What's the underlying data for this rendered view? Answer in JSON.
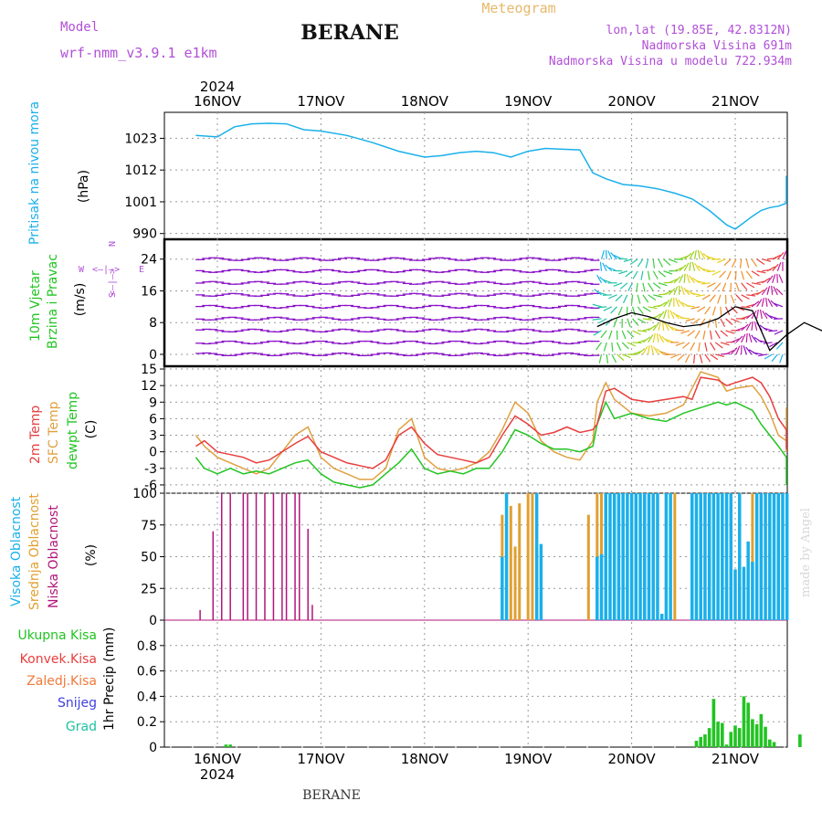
{
  "header": {
    "model_label": "Model",
    "model_name": "wrf-nmm_v3.9.1 e1km",
    "station": "BERANE",
    "meteogram_label": "Meteogram",
    "coords": "lon,lat (19.85E, 42.8312N)",
    "elevation": "Nadmorska Visina 691m",
    "model_elevation": "Nadmorska Visina u modelu 722.934m",
    "footer_station": "BERANE",
    "made_by": "made by Angel"
  },
  "time_axis": {
    "year": "2024",
    "day_labels": [
      "16NOV",
      "17NOV",
      "18NOV",
      "19NOV",
      "20NOV",
      "21NOV"
    ],
    "start_hour": 0,
    "end_hour": 144
  },
  "colors": {
    "pressure": "#1ab0ea",
    "wind_arrows": "#8a12c8",
    "speed_line": "#000000",
    "temp2m": "#e83e3e",
    "sfc_temp": "#e0a040",
    "dewpoint": "#22c422",
    "high_cloud": "#1ab0ea",
    "mid_cloud": "#e0a030",
    "low_cloud": "#b0157a",
    "precip_total": "#22c422",
    "grid": "#999999",
    "year_label": "#000000"
  },
  "panels": {
    "pressure": {
      "label_line1": "Pritisak na nivou mora",
      "unit": "(hPa)",
      "ticks": [
        "1023",
        "1012",
        "1001",
        "990"
      ]
    },
    "wind": {
      "label_line1": "10m Vjetar",
      "label_line2": "Brzina i Pravac",
      "unit": "(m/s)",
      "ticks": [
        "24",
        "16",
        "8",
        "0"
      ],
      "compass_n": "N",
      "compass_s": "S",
      "compass_e": "E",
      "compass_w": "W",
      "compass_axis_h": "<–|–>",
      "compass_axis_v": "<–|–>"
    },
    "temperature": {
      "label_2m": "2m Temp",
      "label_sfc": "SFC Temp",
      "label_dew": "dewpt Temp",
      "unit": "(C)",
      "ticks": [
        "15",
        "12",
        "9",
        "6",
        "3",
        "0",
        "-3",
        "-6"
      ]
    },
    "clouds": {
      "label_high": "Visoka Oblacnost",
      "label_mid": "Srednja Oblacnost",
      "label_low": "Niska Oblacnost",
      "unit": "(%)",
      "ticks": [
        "100",
        "75",
        "50",
        "25",
        "0"
      ]
    },
    "precip": {
      "label_total": "Ukupna Kisa",
      "label_conv": "Konvek.Kisa",
      "label_frozen": "Zaledj.Kisa",
      "label_snow": "Snijeg",
      "label_graupel": "Grad",
      "unit": "1hr Precip (mm)",
      "ticks": [
        "0.8",
        "0.6",
        "0.4",
        "0.2",
        "0"
      ]
    }
  },
  "chart_data": [
    {
      "type": "line",
      "name": "pressure",
      "x_units": "hours from 16NOV 00",
      "ylim": [
        988,
        1032
      ],
      "x": [
        -5,
        0,
        4,
        8,
        12,
        16,
        20,
        24,
        30,
        36,
        42,
        48,
        52,
        56,
        60,
        64,
        68,
        72,
        76,
        80,
        84,
        87,
        90,
        94,
        98,
        102,
        106,
        110,
        114,
        118,
        120,
        124,
        126,
        128,
        130,
        132,
        134,
        136,
        138,
        140,
        142,
        144
      ],
      "values": [
        1024,
        1023.5,
        1027,
        1028,
        1028.2,
        1028,
        1026,
        1025.5,
        1024,
        1021.5,
        1018.5,
        1016.5,
        1017,
        1018,
        1018.5,
        1018,
        1016.5,
        1018.5,
        1019.5,
        1019.2,
        1019,
        1011,
        1009,
        1007,
        1006.5,
        1005.5,
        1004,
        1002,
        998,
        993,
        991.5,
        996,
        998,
        999,
        999.5,
        1000.5,
        1001,
        1004,
        1007,
        1008.5,
        1009.5,
        1010
      ]
    },
    {
      "type": "line",
      "name": "10m wind speed",
      "ylim": [
        -3,
        29
      ],
      "x": [
        88,
        92,
        96,
        100,
        104,
        108,
        112,
        116,
        120,
        124,
        128,
        132,
        136,
        140,
        144
      ],
      "values": [
        7,
        9,
        10.5,
        9.5,
        8,
        7,
        7.5,
        9,
        12,
        11,
        1,
        5,
        8,
        6,
        4
      ]
    },
    {
      "type": "line",
      "name": "2m Temp",
      "ylim": [
        -7.5,
        15.5
      ],
      "x": [
        -5,
        -3,
        0,
        3,
        6,
        9,
        12,
        15,
        18,
        21,
        24,
        27,
        30,
        33,
        36,
        39,
        42,
        45,
        48,
        51,
        54,
        57,
        60,
        63,
        66,
        69,
        72,
        75,
        78,
        81,
        84,
        87,
        88,
        90,
        92,
        96,
        100,
        104,
        108,
        110,
        112,
        116,
        118,
        120,
        124,
        126,
        128,
        130,
        132,
        134,
        136,
        138,
        140,
        142,
        144
      ],
      "values": [
        1,
        2,
        0,
        -0.5,
        -1,
        -2,
        -1.5,
        0,
        1.5,
        2.8,
        0,
        -1,
        -2,
        -2.5,
        -3,
        -1.5,
        3,
        4.5,
        1.5,
        -0.5,
        -1,
        -1.5,
        -2,
        -1,
        3,
        6.5,
        5,
        3,
        3.5,
        4.5,
        3.5,
        4,
        5,
        11,
        11.5,
        9.5,
        9,
        9.5,
        10,
        9.5,
        13.5,
        13,
        12,
        12.5,
        13.5,
        12.5,
        10,
        6,
        4,
        2,
        1.5,
        0.5,
        1,
        3,
        3.5
      ]
    },
    {
      "type": "line",
      "name": "SFC Temp",
      "ylim": [
        -7.5,
        15.5
      ],
      "x": [
        -5,
        -3,
        0,
        3,
        6,
        9,
        12,
        15,
        18,
        21,
        24,
        27,
        30,
        33,
        36,
        39,
        42,
        45,
        48,
        51,
        54,
        57,
        60,
        63,
        66,
        69,
        72,
        75,
        78,
        81,
        84,
        87,
        88,
        90,
        92,
        96,
        100,
        104,
        108,
        110,
        112,
        116,
        118,
        120,
        124,
        126,
        128,
        130,
        132,
        134,
        136,
        138,
        140,
        142,
        144
      ],
      "values": [
        3,
        1,
        -1,
        -2,
        -3,
        -4,
        -3,
        0,
        3,
        4.5,
        -1,
        -3,
        -4,
        -5,
        -5,
        -3,
        4,
        6,
        -1,
        -3,
        -3.5,
        -3,
        -2,
        0,
        4,
        9,
        7,
        2,
        0,
        -1,
        -1.5,
        2,
        9,
        12.5,
        9.5,
        7,
        6.5,
        7,
        8.5,
        11.5,
        14.5,
        13.5,
        11,
        11.5,
        12,
        10,
        7,
        3,
        2,
        1,
        0,
        0.5,
        4,
        7,
        8
      ]
    },
    {
      "type": "line",
      "name": "dewpt Temp",
      "ylim": [
        -7.5,
        15.5
      ],
      "x": [
        -5,
        -3,
        0,
        3,
        6,
        9,
        12,
        15,
        18,
        21,
        24,
        27,
        30,
        33,
        36,
        39,
        42,
        45,
        48,
        51,
        54,
        57,
        60,
        63,
        66,
        69,
        72,
        75,
        78,
        81,
        84,
        87,
        88,
        90,
        92,
        96,
        100,
        104,
        108,
        110,
        112,
        116,
        118,
        120,
        124,
        126,
        128,
        130,
        132,
        134,
        136,
        138,
        140,
        142,
        144
      ],
      "values": [
        -1,
        -3,
        -4,
        -3,
        -4,
        -3.5,
        -4,
        -3,
        -2,
        -1.5,
        -4,
        -5.5,
        -6,
        -6.5,
        -6,
        -4,
        -2,
        0.5,
        -3,
        -4,
        -3.5,
        -4,
        -3,
        -3,
        0,
        4,
        3,
        1.5,
        0.5,
        0.5,
        0,
        1,
        5,
        9,
        6,
        7,
        6,
        5.5,
        7,
        7.5,
        8,
        9,
        8.5,
        9,
        7.5,
        5,
        3,
        1,
        -1,
        -3,
        -4,
        -4,
        -5,
        -5.5,
        -6
      ]
    },
    {
      "type": "bar",
      "name": "Niska Oblacnost",
      "ylim": [
        0,
        100
      ],
      "x": [
        -4,
        -1,
        1,
        3,
        6,
        7,
        9,
        11,
        13,
        15,
        16,
        18,
        19,
        21,
        22
      ],
      "values": [
        8,
        70,
        100,
        100,
        100,
        100,
        100,
        100,
        100,
        100,
        100,
        100,
        100,
        72,
        12
      ]
    },
    {
      "type": "bar",
      "name": "Srednja Oblacnost",
      "ylim": [
        0,
        100
      ],
      "x": [
        66,
        67,
        68,
        69,
        70,
        72,
        73,
        74,
        86,
        88,
        89,
        91,
        92,
        94,
        96,
        98,
        101,
        104,
        106,
        111,
        113,
        114,
        116,
        121,
        124,
        126,
        136,
        138,
        140
      ],
      "values": [
        83,
        55,
        90,
        58,
        92,
        100,
        100,
        58,
        83,
        100,
        100,
        100,
        100,
        100,
        100,
        100,
        100,
        100,
        100,
        100,
        100,
        100,
        100,
        100,
        100,
        100,
        100,
        35,
        63
      ]
    },
    {
      "type": "bar",
      "name": "Visoka Oblacnost",
      "ylim": [
        0,
        100
      ],
      "x": [
        66,
        67,
        74,
        75,
        88,
        89,
        90,
        91,
        92,
        93,
        94,
        95,
        96,
        97,
        98,
        99,
        100,
        101,
        102,
        103,
        104,
        105,
        110,
        111,
        112,
        113,
        114,
        115,
        116,
        117,
        118,
        119,
        120,
        121,
        122,
        123,
        124,
        125,
        126,
        127,
        128,
        129,
        130,
        131,
        132
      ],
      "values": [
        50,
        100,
        100,
        60,
        50,
        52,
        100,
        100,
        100,
        100,
        100,
        100,
        100,
        100,
        100,
        100,
        100,
        100,
        100,
        5,
        100,
        100,
        100,
        100,
        100,
        100,
        100,
        100,
        100,
        100,
        100,
        100,
        40,
        100,
        42,
        62,
        46,
        100,
        100,
        100,
        100,
        100,
        100,
        100,
        100
      ]
    },
    {
      "type": "bar",
      "name": "Ukupna Kisa",
      "ylim": [
        0,
        1.0
      ],
      "x": [
        2,
        3,
        111,
        112,
        113,
        114,
        115,
        116,
        117,
        118,
        119,
        120,
        121,
        122,
        123,
        124,
        125,
        126,
        127,
        128,
        129,
        135,
        142
      ],
      "values": [
        0.02,
        0.02,
        0.05,
        0.08,
        0.1,
        0.15,
        0.38,
        0.2,
        0.19,
        0.02,
        0.12,
        0.17,
        0.15,
        0.4,
        0.35,
        0.22,
        0.18,
        0.26,
        0.16,
        0.06,
        0.04,
        0.1,
        0.02
      ]
    }
  ]
}
